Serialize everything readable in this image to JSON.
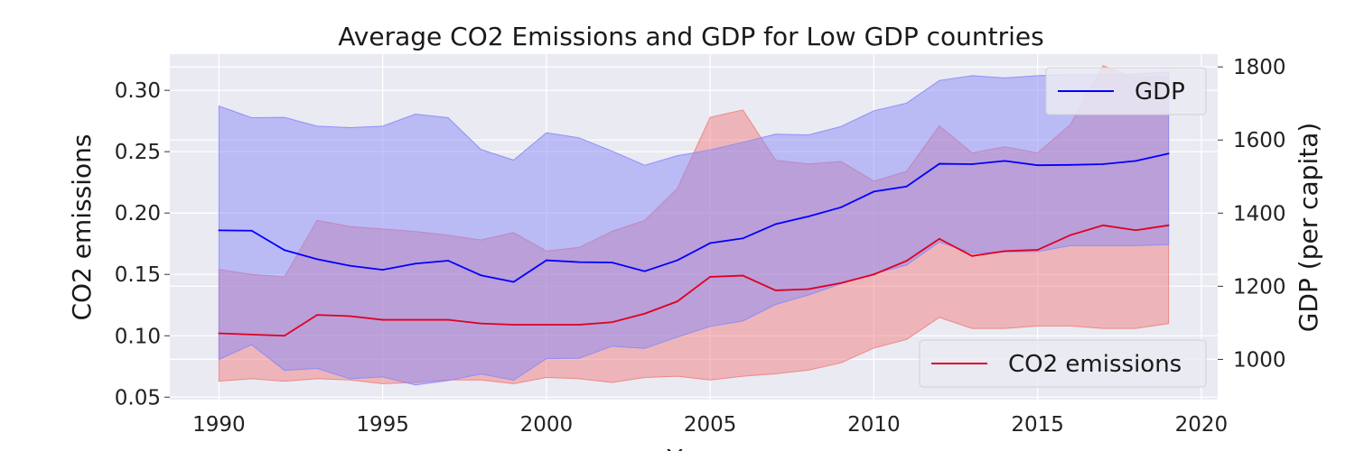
{
  "chart_data": {
    "type": "line",
    "title": "Average CO2 Emissions and GDP for Low GDP countries",
    "xlabel": "Year",
    "ylabel_left": "CO2 emissions",
    "ylabel_right": "GDP (per capita)",
    "xlim": [
      1988.5,
      2020.5
    ],
    "ylim_left": [
      0.048,
      0.3295
    ],
    "ylim_right": [
      890,
      1835
    ],
    "x_ticks": [
      1990,
      1995,
      2000,
      2005,
      2010,
      2015,
      2020
    ],
    "y_ticks_left": [
      0.05,
      0.1,
      0.15,
      0.2,
      0.25,
      0.3
    ],
    "y_ticks_left_labels": [
      "0.05",
      "0.10",
      "0.15",
      "0.20",
      "0.25",
      "0.30"
    ],
    "y_ticks_right": [
      1000,
      1200,
      1400,
      1600,
      1800
    ],
    "y_ticks_right_labels": [
      "1000",
      "1200",
      "1400",
      "1600",
      "1800"
    ],
    "grid": true,
    "x": [
      1990,
      1991,
      1992,
      1993,
      1994,
      1995,
      1996,
      1997,
      1998,
      1999,
      2000,
      2001,
      2002,
      2003,
      2004,
      2005,
      2006,
      2007,
      2008,
      2009,
      2010,
      2011,
      2012,
      2013,
      2014,
      2015,
      2016,
      2017,
      2018,
      2019
    ],
    "series": [
      {
        "name": "CO2 emissions",
        "axis": "left",
        "color": "#dd0022",
        "band_color": "#f08080",
        "values": [
          0.102,
          0.101,
          0.1,
          0.117,
          0.116,
          0.113,
          0.113,
          0.113,
          0.11,
          0.109,
          0.109,
          0.109,
          0.111,
          0.118,
          0.128,
          0.148,
          0.149,
          0.137,
          0.138,
          0.143,
          0.15,
          0.161,
          0.179,
          0.165,
          0.169,
          0.17,
          0.182,
          0.19,
          0.186,
          0.19
        ],
        "lower": [
          0.063,
          0.065,
          0.063,
          0.065,
          0.064,
          0.061,
          0.062,
          0.064,
          0.064,
          0.061,
          0.066,
          0.065,
          0.062,
          0.066,
          0.067,
          0.064,
          0.067,
          0.069,
          0.072,
          0.078,
          0.09,
          0.097,
          0.115,
          0.106,
          0.106,
          0.108,
          0.108,
          0.106,
          0.106,
          0.11
        ],
        "upper": [
          0.154,
          0.15,
          0.148,
          0.194,
          0.189,
          0.187,
          0.185,
          0.182,
          0.178,
          0.184,
          0.169,
          0.172,
          0.185,
          0.194,
          0.22,
          0.278,
          0.284,
          0.243,
          0.24,
          0.242,
          0.226,
          0.234,
          0.271,
          0.249,
          0.254,
          0.249,
          0.272,
          0.32,
          0.31,
          0.311
        ]
      },
      {
        "name": "GDP",
        "axis": "right",
        "color": "#0000ff",
        "band_color": "#8a8af8",
        "values": [
          1353,
          1352,
          1299,
          1274,
          1256,
          1245,
          1262,
          1270,
          1230,
          1212,
          1271,
          1266,
          1265,
          1241,
          1271,
          1318,
          1331,
          1370,
          1391,
          1416,
          1459,
          1473,
          1535,
          1534,
          1543,
          1531,
          1532,
          1534,
          1543,
          1563
        ],
        "lower": [
          1000,
          1040,
          970,
          975,
          947,
          952,
          930,
          942,
          960,
          943,
          1002,
          1003,
          1036,
          1030,
          1061,
          1090,
          1105,
          1150,
          1176,
          1207,
          1234,
          1258,
          1321,
          1291,
          1294,
          1295,
          1311,
          1311,
          1311,
          1314
        ],
        "upper": [
          1693,
          1661,
          1662,
          1638,
          1634,
          1638,
          1671,
          1661,
          1574,
          1545,
          1620,
          1606,
          1570,
          1531,
          1557,
          1573,
          1594,
          1616,
          1614,
          1637,
          1680,
          1701,
          1763,
          1776,
          1770,
          1776,
          1779,
          1778,
          1780,
          1786
        ]
      }
    ],
    "legends": [
      {
        "label": "GDP",
        "color": "#0000ff",
        "placement": "top-right"
      },
      {
        "label": "CO2 emissions",
        "color": "#dd0022",
        "placement": "bottom-right"
      }
    ]
  }
}
